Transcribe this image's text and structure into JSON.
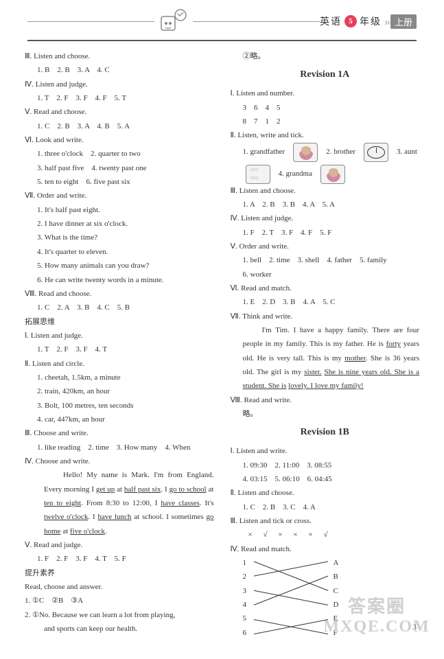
{
  "header": {
    "subject": "英语",
    "grade_num": "5",
    "grade_text": "年级",
    "volume": "上册"
  },
  "left": {
    "s3": {
      "head": "Ⅲ. Listen and choose.",
      "ans": "1. B　2. B　3. A　4. C"
    },
    "s4": {
      "head": "Ⅳ. Listen and judge.",
      "ans": "1. T　2. F　3. F　4. F　5. T"
    },
    "s5": {
      "head": "Ⅴ. Read and choose.",
      "ans": "1. C　2. B　3. A　4. B　5. A"
    },
    "s6": {
      "head": "Ⅵ. Look and write.",
      "items": [
        "1. three o'clock　2. quarter to two",
        "3. half past five　4. twenty past one",
        "5. ten to eight　6. five past six"
      ]
    },
    "s7": {
      "head": "Ⅶ. Order and write.",
      "items": [
        "1. It's half past eight.",
        "2. I have dinner at six o'clock.",
        "3. What is the time?",
        "4. It's quarter to eleven.",
        "5. How many animals can you draw?",
        "6. He can write twenty words in a minute."
      ]
    },
    "s8": {
      "head": "Ⅷ. Read and choose.",
      "ans": "1. C　2. A　3. B　4. C　5. B"
    },
    "expand_title": "拓展思维",
    "e1": {
      "head": "Ⅰ. Listen and judge.",
      "ans": "1. T　2. F　3. F　4. T"
    },
    "e2": {
      "head": "Ⅱ. Listen and circle.",
      "items": [
        "1. cheetah, 1.5km, a minute",
        "2. train, 420km, an hour",
        "3. Bolt, 100 metres, ten seconds",
        "4. car, 447km, an hour"
      ]
    },
    "e3": {
      "head": "Ⅲ. Choose and write.",
      "ans": "1. like reading　2. time　3. How many　4. When"
    },
    "e4": {
      "head": "Ⅳ. Choose and write.",
      "para_parts": [
        "Hello! My name is Mark. I'm from England. Every morning I ",
        "get up",
        " at ",
        "half past six",
        ". I ",
        "go to school",
        " at ",
        "ten to eight",
        ". From 8:30 to 12:00, I ",
        "have classes",
        ". It's ",
        "twelve o'clock",
        ". I ",
        "have lunch",
        " at school. I sometimes ",
        "go home",
        " at ",
        "five o'clock",
        "."
      ]
    },
    "e5": {
      "head": "Ⅴ. Read and judge.",
      "ans": "1. F　2. F　3. F　4. T　5. F"
    },
    "promote_title": "提升素养",
    "p_head": "Read, choose and answer.",
    "p1": "1. ①C　②B　③A",
    "p2a": "2. ①No. Because we can learn a lot from playing,",
    "p2b": "and sports can keep our health."
  },
  "right": {
    "skip": "②略。",
    "rev1a_title": "Revision 1A",
    "a1": {
      "head": "Ⅰ. Listen and number.",
      "row1": "3　6　4　5",
      "row2": "8　7　1　2"
    },
    "a2": {
      "head": "Ⅱ. Listen, write and tick.",
      "items": {
        "i1": "1. grandfather",
        "i2": "2. brother",
        "i3": "3. aunt",
        "i4": "4. grandma"
      }
    },
    "a3": {
      "head": "Ⅲ. Listen and choose.",
      "ans": "1. A　2. B　3. B　4. A　5. A"
    },
    "a4": {
      "head": "Ⅳ. Listen and judge.",
      "ans": "1. F　2. T　3. F　4. F　5. F"
    },
    "a5": {
      "head": "Ⅴ. Order and write.",
      "row1": "1. bell　2. time　3. shell　4. father　5. family",
      "row2": "6. worker"
    },
    "a6": {
      "head": "Ⅵ. Read and match.",
      "ans": "1. E　2. D　3. B　4. A　5. C"
    },
    "a7": {
      "head": "Ⅶ. Think and write.",
      "para_parts": [
        "I'm Tim. I have a happy family. There are four people in my family. This is my father. He is ",
        "forty",
        " years old. He is very tall. This is my ",
        "mother",
        ". She is 36 years old. The girl is my ",
        "sister.",
        " ",
        "She is nine years old. She is a student. She is",
        " ",
        "lovely. I love my family!"
      ]
    },
    "a8": {
      "head": "Ⅷ. Read and write.",
      "ans": "略。"
    },
    "rev1b_title": "Revision 1B",
    "b1": {
      "head": "Ⅰ. Listen and write.",
      "row1": "1. 09:30　2. 11:00　3. 08:55",
      "row2": "4. 03:15　5. 06:10　6. 04:45"
    },
    "b2": {
      "head": "Ⅱ. Listen and choose.",
      "ans": "1. C　2. B　3. C　4. A"
    },
    "b3": {
      "head": "Ⅲ. Listen and tick or cross.",
      "symbols": [
        "×",
        "√",
        "×",
        "×",
        "×",
        "√"
      ]
    },
    "b4": {
      "head": "Ⅳ. Read and match.",
      "left_labels": [
        "1",
        "2",
        "3",
        "4",
        "5",
        "6"
      ],
      "right_labels": [
        "A",
        "B",
        "C",
        "D",
        "E",
        "F"
      ],
      "lines": [
        [
          0,
          2
        ],
        [
          1,
          0
        ],
        [
          2,
          3
        ],
        [
          3,
          1
        ],
        [
          4,
          5
        ],
        [
          5,
          4
        ]
      ]
    }
  },
  "page_num": "3",
  "watermark": {
    "big": "答案圈",
    "url": "MXQE.COM"
  }
}
